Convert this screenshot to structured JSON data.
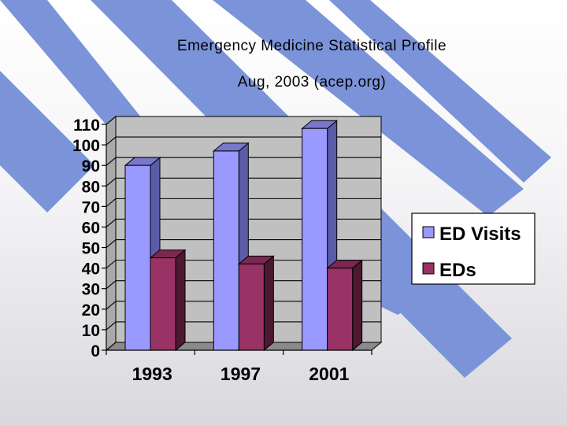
{
  "slide": {
    "title_line1": "Emergency Medicine Statistical Profile",
    "title_line2": "Aug, 2003 (acep.org)"
  },
  "colors": {
    "stripe": "#7b93d9",
    "series_front": [
      "#9a99ff",
      "#993366"
    ],
    "series_top": [
      "#7777cc",
      "#7a2850"
    ],
    "series_side": [
      "#5b5ba8",
      "#4d1830"
    ],
    "plot_back": "#c0c0c0",
    "plot_floor": "#8a8a8a"
  },
  "chart_data": {
    "type": "bar",
    "title": "Emergency Medicine Statistical Profile",
    "categories": [
      "1993",
      "1997",
      "2001"
    ],
    "series": [
      {
        "name": "ED Visits",
        "values": [
          90,
          97,
          108
        ]
      },
      {
        "name": "EDs",
        "values": [
          45,
          42,
          40
        ]
      }
    ],
    "ylim": [
      0,
      110
    ],
    "yticks": [
      0,
      10,
      20,
      30,
      40,
      50,
      60,
      70,
      80,
      90,
      100,
      110
    ],
    "xlabel": "",
    "ylabel": "",
    "grid": true,
    "legend": "right",
    "style": "3d-clustered-column"
  }
}
